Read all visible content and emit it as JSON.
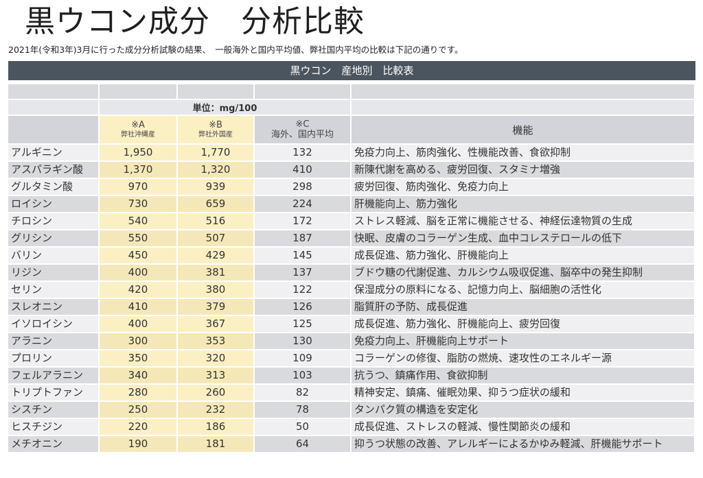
{
  "title": "黒ウコン成分　分析比較",
  "subtitle": "2021年(令和3年)3月に行った成分分析試験の結果、　一般海外と国内平均値、弊社国内平均の比較は下記の通りです。",
  "banner": "黒ウコン　産地別　比較表",
  "unit": "単位：mg/100",
  "headers": {
    "a_mark": "※A",
    "a_sub": "弊社沖縄産",
    "b_mark": "※B",
    "b_sub": "弊社外国産",
    "c_mark": "※C",
    "c_sub": "海外、国内平均",
    "function": "機能"
  },
  "rows": [
    {
      "name": "アルギニン",
      "a": "1,950",
      "b": "1,770",
      "c": "132",
      "func": "免疫力向上、筋肉強化、性機能改善、食欲抑制"
    },
    {
      "name": "アスパラギン酸",
      "a": "1,370",
      "b": "1,320",
      "c": "410",
      "func": "新陳代謝を高める、疲労回復、スタミナ増強"
    },
    {
      "name": "グルタミン酸",
      "a": "970",
      "b": "939",
      "c": "298",
      "func": "疲労回復、筋肉強化、免疫力向上"
    },
    {
      "name": "ロイシン",
      "a": "730",
      "b": "659",
      "c": "224",
      "func": "肝機能向上、筋力強化"
    },
    {
      "name": "チロシン",
      "a": "540",
      "b": "516",
      "c": "172",
      "func": "ストレス軽減、脳を正常に機能させる、神経伝達物質の生成"
    },
    {
      "name": "グリシン",
      "a": "550",
      "b": "507",
      "c": "187",
      "func": "快眠、皮膚のコラーゲン生成、血中コレステロールの低下"
    },
    {
      "name": "バリン",
      "a": "450",
      "b": "429",
      "c": "145",
      "func": "成長促進、筋力強化、肝機能向上"
    },
    {
      "name": "リジン",
      "a": "400",
      "b": "381",
      "c": "137",
      "func": "ブドウ糖の代謝促進、カルシウム吸収促進、脳卒中の発生抑制"
    },
    {
      "name": "セリン",
      "a": "420",
      "b": "380",
      "c": "122",
      "func": "保湿成分の原料になる、記憶力向上、脳細胞の活性化"
    },
    {
      "name": "スレオニン",
      "a": "410",
      "b": "379",
      "c": "126",
      "func": "脂質肝の予防、成長促進"
    },
    {
      "name": "イソロイシン",
      "a": "400",
      "b": "367",
      "c": "125",
      "func": "成長促進、筋力強化、肝機能向上、疲労回復"
    },
    {
      "name": "アラニン",
      "a": "300",
      "b": "353",
      "c": "130",
      "func": "免疫力向上、肝機能向上サポート"
    },
    {
      "name": "プロリン",
      "a": "350",
      "b": "320",
      "c": "109",
      "func": "コラーゲンの修復、脂肪の燃焼、速攻性のエネルギー源"
    },
    {
      "name": "フェルアラニン",
      "a": "340",
      "b": "313",
      "c": "103",
      "func": "抗うつ、鎮痛作用、食欲抑制"
    },
    {
      "name": "トリプトファン",
      "a": "280",
      "b": "260",
      "c": "82",
      "func": "精神安定、鎮痛、催眠効果、抑うつ症状の緩和"
    },
    {
      "name": "シスチン",
      "a": "250",
      "b": "232",
      "c": "78",
      "func": "タンパク質の構造を安定化"
    },
    {
      "name": "ヒスチジン",
      "a": "220",
      "b": "186",
      "c": "50",
      "func": "成長促進、ストレスの軽減、慢性関節炎の緩和"
    },
    {
      "name": "メチオニン",
      "a": "190",
      "b": "181",
      "c": "64",
      "func": "抑うつ状態の改善、アレルギーによるかゆみ軽減、肝機能サポート"
    }
  ]
}
